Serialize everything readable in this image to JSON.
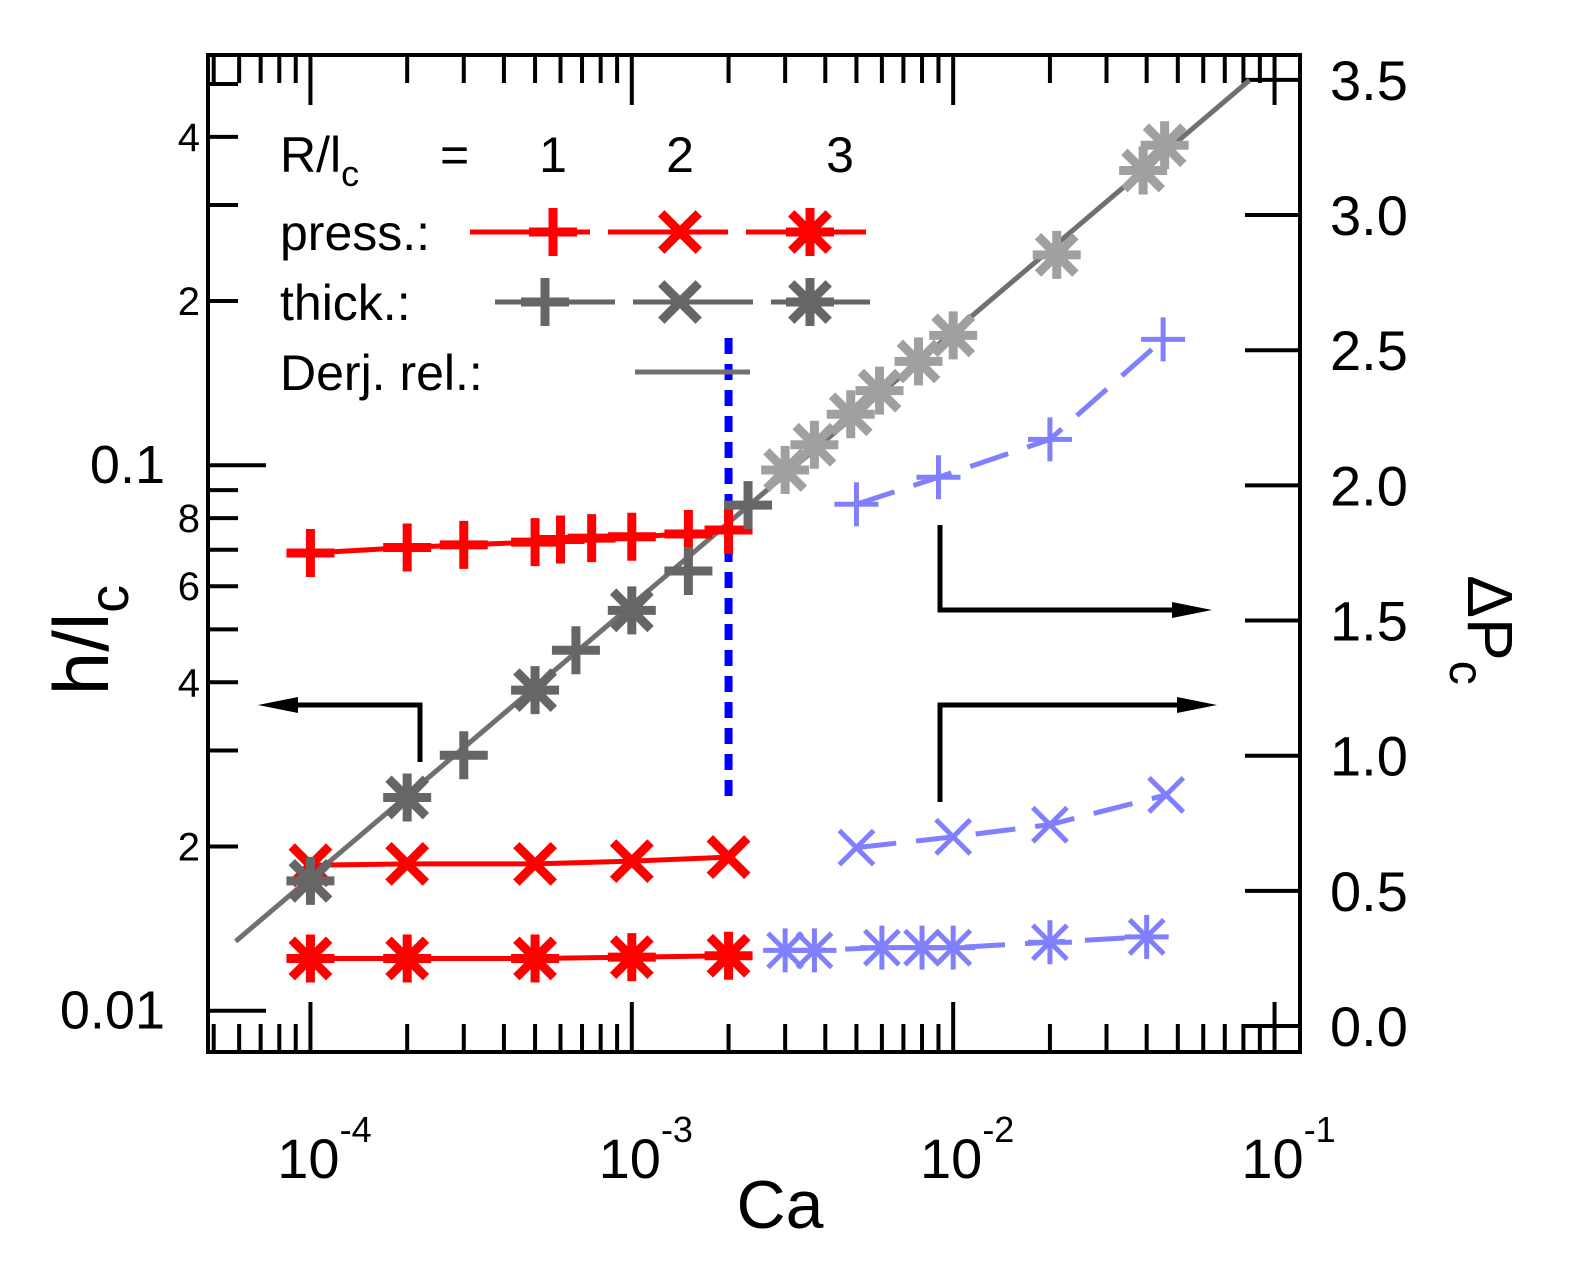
{
  "chart_data": {
    "type": "scatter",
    "xlabel": "Ca",
    "ylabel": "h/l",
    "ylabel_sub": "c",
    "y2label": "ΔP",
    "y2label_sub": "c",
    "xscale": "log",
    "yscale": "log",
    "xlim": [
      4.8e-05,
      0.12
    ],
    "ylim": [
      0.0084,
      0.565
    ],
    "y2lim": [
      -0.096,
      3.592
    ],
    "xticks": [
      {
        "value": 0.0001,
        "label": "10",
        "exponent": "-4"
      },
      {
        "value": 0.001,
        "label": "10",
        "exponent": "-3"
      },
      {
        "value": 0.01,
        "label": "10",
        "exponent": "-2"
      },
      {
        "value": 0.1,
        "label": "10",
        "exponent": "-1"
      }
    ],
    "xminorticks": [
      5e-05,
      6e-05,
      7e-05,
      8e-05,
      9e-05,
      0.0002,
      0.0003,
      0.0004,
      0.0005,
      0.0006,
      0.0007,
      0.0008,
      0.0009,
      0.002,
      0.003,
      0.004,
      0.005,
      0.006,
      0.007,
      0.008,
      0.009,
      0.02,
      0.03,
      0.04,
      0.05,
      0.06,
      0.07,
      0.08,
      0.09
    ],
    "yticks": [
      0.01,
      {
        "value": 0.02,
        "label": "2"
      },
      {
        "value": 0.04,
        "label": "4"
      },
      {
        "value": 0.06,
        "label": "6"
      },
      {
        "value": 0.08,
        "label": "8"
      },
      0.1,
      {
        "value": 0.2,
        "label": "2"
      },
      {
        "value": 0.4,
        "label": "4"
      }
    ],
    "yminorticks": [
      0.03,
      0.05,
      0.07,
      0.09,
      0.3,
      0.5
    ],
    "y2ticks": [
      {
        "value": 0,
        "label": "0.0"
      },
      0.5,
      {
        "value": 1,
        "label": "1.0"
      },
      1.5,
      {
        "value": 2,
        "label": "2.0"
      },
      2.5,
      {
        "value": 3,
        "label": "3.0"
      },
      3.5
    ],
    "legend": {
      "header": "R/l",
      "header_sub": "c",
      "equals": "=",
      "columns": [
        "1",
        "2",
        "3"
      ],
      "rows": [
        "press.:",
        "thick.:",
        "Derj. rel.:"
      ]
    },
    "series": [
      {
        "marker": "+",
        "color": "#ff0000",
        "axis": "y2",
        "line": "solid",
        "x": [
          0.0001,
          0.0002,
          0.0003,
          0.0005,
          0.0006,
          0.00075,
          0.001,
          0.0015,
          0.002
        ],
        "values": [
          1.75,
          1.77,
          1.78,
          1.79,
          1.8,
          1.805,
          1.81,
          1.82,
          1.835
        ]
      },
      {
        "marker": "+",
        "color": "#8080ff",
        "axis": "y2",
        "line": "dashed",
        "x": [
          0.005,
          0.009,
          0.02,
          0.045
        ],
        "values": [
          1.93,
          2.03,
          2.17,
          2.54
        ]
      },
      {
        "marker": "x",
        "color": "#ff0000",
        "axis": "y2",
        "line": "solid",
        "x": [
          0.0001,
          0.0002,
          0.0005,
          0.001,
          0.002
        ],
        "values": [
          0.595,
          0.6,
          0.6,
          0.61,
          0.625
        ]
      },
      {
        "marker": "x",
        "color": "#8080ff",
        "axis": "y2",
        "line": "dashed",
        "x": [
          0.005,
          0.01,
          0.02,
          0.046
        ],
        "values": [
          0.66,
          0.7,
          0.745,
          0.855
        ]
      },
      {
        "marker": "*",
        "color": "#ff0000",
        "axis": "y2",
        "line": "solid",
        "x": [
          0.0001,
          0.0002,
          0.0005,
          0.001,
          0.002
        ],
        "values": [
          0.25,
          0.25,
          0.25,
          0.255,
          0.26
        ]
      },
      {
        "marker": "*",
        "color": "#8080ff",
        "axis": "y2",
        "line": "dashed",
        "x": [
          0.003,
          0.0037,
          0.006,
          0.008,
          0.01,
          0.02,
          0.04
        ],
        "values": [
          0.28,
          0.28,
          0.29,
          0.29,
          0.29,
          0.31,
          0.33
        ]
      },
      {
        "marker": "+",
        "color": "#666666",
        "axis": "y",
        "line": "none",
        "x": [
          0.0003,
          0.00067,
          0.0015,
          0.0023
        ],
        "values": [
          0.0294,
          0.0458,
          0.064,
          0.0845
        ]
      },
      {
        "marker": "*",
        "color": "#666666",
        "axis": "y",
        "line": "none",
        "x": [
          0.0001,
          0.0002,
          0.0005,
          0.001
        ],
        "values": [
          0.0173,
          0.0246,
          0.0387,
          0.0542
        ]
      },
      {
        "marker": "*",
        "color": "#a0a0a0",
        "axis": "y",
        "line": "none",
        "x": [
          0.003,
          0.0037,
          0.0048,
          0.0059,
          0.0078,
          0.01,
          0.021,
          0.039,
          0.0455
        ],
        "values": [
          0.098,
          0.109,
          0.124,
          0.137,
          0.155,
          0.173,
          0.243,
          0.347,
          0.386
        ]
      }
    ],
    "derjaguin": {
      "color": "#707070",
      "x": [
        5.85e-05,
        0.0836
      ],
      "values": [
        0.0134,
        0.508
      ]
    },
    "vline": {
      "x": 0.002,
      "color": "#0000ff"
    }
  }
}
